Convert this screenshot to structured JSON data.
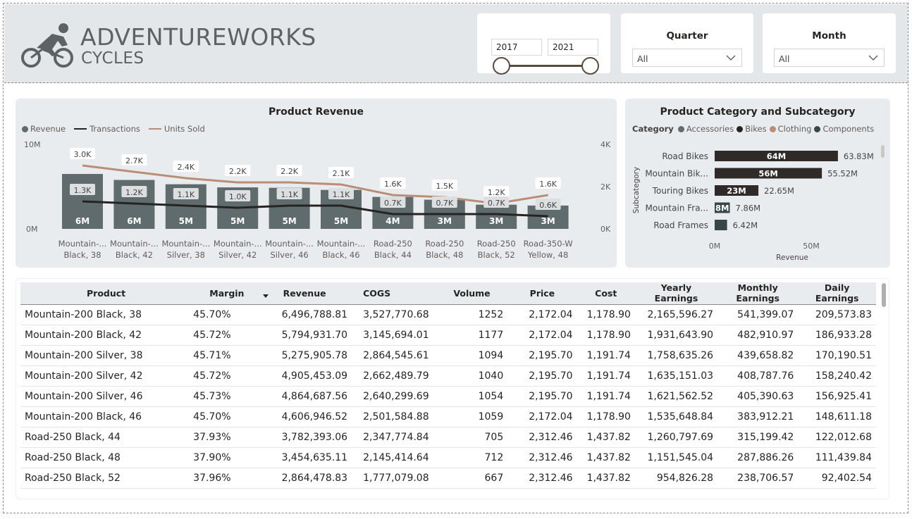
{
  "header": {
    "logo_title": "ADVENTUREWORKS",
    "logo_sub": "CYCLES",
    "year_slider": {
      "start": "2017",
      "end": "2021"
    },
    "quarter": {
      "title": "Quarter",
      "value": "All"
    },
    "month": {
      "title": "Month",
      "value": "All"
    }
  },
  "revenue_chart": {
    "title": "Product Revenue",
    "legend": {
      "revenue": "Revenue",
      "transactions": "Transactions",
      "units": "Units Sold"
    },
    "y_left": [
      "10M",
      "0M"
    ],
    "y_right": [
      "4K",
      "2K",
      "0K"
    ]
  },
  "category_chart": {
    "title": "Product Category and Subcategory",
    "legend_title": "Category",
    "legend": [
      "Accessories",
      "Bikes",
      "Clothing",
      "Components"
    ],
    "ylabel": "Subcategory",
    "xlabel": "Revenue",
    "x_ticks": [
      "0M",
      "50M"
    ]
  },
  "chart_data": [
    {
      "type": "bar",
      "title": "Product Revenue",
      "categories": [
        "Mountain-... Black, 38",
        "Mountain-... Black, 42",
        "Mountain-... Silver, 38",
        "Mountain-... Silver, 42",
        "Mountain-... Silver, 46",
        "Mountain-... Black, 46",
        "Road-250 Black, 44",
        "Road-250 Black, 48",
        "Road-250 Black, 52",
        "Road-350-W Yellow, 48"
      ],
      "series": [
        {
          "name": "Revenue",
          "type": "bar",
          "values": [
            6.5,
            5.79,
            5.28,
            4.91,
            4.86,
            4.61,
            3.78,
            3.45,
            2.86,
            2.76
          ],
          "labels": [
            "6M",
            "6M",
            "5M",
            "5M",
            "5M",
            "5M",
            "4M",
            "3M",
            "3M",
            "3M"
          ],
          "axis": "left"
        },
        {
          "name": "Transactions",
          "type": "line",
          "values": [
            1300,
            1200,
            1100,
            1000,
            1100,
            1100,
            700,
            700,
            700,
            600
          ],
          "labels": [
            "1.3K",
            "1.2K",
            "1.1K",
            "1.0K",
            "1.1K",
            "1.1K",
            "0.7K",
            "0.7K",
            "0.7K",
            "0.6K"
          ],
          "axis": "right"
        },
        {
          "name": "Units Sold",
          "type": "line",
          "values": [
            3000,
            2700,
            2400,
            2200,
            2200,
            2100,
            1600,
            1500,
            1200,
            1600
          ],
          "labels": [
            "3.0K",
            "2.7K",
            "2.4K",
            "2.2K",
            "2.2K",
            "2.1K",
            "1.6K",
            "1.5K",
            "1.2K",
            "1.6K"
          ],
          "axis": "right"
        }
      ],
      "ylim_left": [
        0,
        10
      ],
      "ylim_right": [
        0,
        4000
      ],
      "colors": {
        "bar": "#5f6b6d",
        "transactions": "#252423",
        "units": "#b98e78"
      },
      "legend_position": "top-left"
    },
    {
      "type": "bar",
      "orientation": "horizontal",
      "title": "Product Category and Subcategory",
      "categories": [
        "Road Bikes",
        "Mountain Bik...",
        "Touring Bikes",
        "Mountain Fra...",
        "Road Frames"
      ],
      "values": [
        63.83,
        55.52,
        22.65,
        7.86,
        6.42
      ],
      "inner_labels": [
        "64M",
        "56M",
        "23M",
        "8M",
        ""
      ],
      "outer_labels": [
        "63.83M",
        "55.52M",
        "22.65M",
        "7.86M",
        "6.42M"
      ],
      "bar_category": [
        "Bikes",
        "Bikes",
        "Bikes",
        "Components",
        "Components"
      ],
      "xlim": [
        0,
        80
      ],
      "xlabel": "Revenue",
      "ylabel": "Subcategory",
      "legend_colors": {
        "Accessories": "#5f6b6d",
        "Bikes": "#252423",
        "Clothing": "#b98e78",
        "Components": "#374649"
      }
    }
  ],
  "table": {
    "columns": [
      "Product",
      "Margin",
      "Revenue",
      "COGS",
      "Volume",
      "Price",
      "Cost",
      "Yearly Earnings",
      "Monthly Earnings",
      "Daily Earnings"
    ],
    "rows": [
      [
        "Mountain-200 Black, 38",
        "45.70%",
        "6,496,788.81",
        "3,527,770.68",
        "1252",
        "2,172.04",
        "1,178.90",
        "2,165,596.27",
        "541,399.07",
        "209,573.83"
      ],
      [
        "Mountain-200 Black, 42",
        "45.72%",
        "5,794,931.70",
        "3,145,694.01",
        "1177",
        "2,172.04",
        "1,178.90",
        "1,931,643.90",
        "482,910.97",
        "186,933.28"
      ],
      [
        "Mountain-200 Silver, 38",
        "45.71%",
        "5,275,905.78",
        "2,864,545.61",
        "1094",
        "2,195.70",
        "1,191.74",
        "1,758,635.26",
        "439,658.82",
        "170,190.51"
      ],
      [
        "Mountain-200 Silver, 42",
        "45.72%",
        "4,905,453.09",
        "2,662,489.79",
        "1040",
        "2,195.70",
        "1,191.74",
        "1,635,151.03",
        "408,787.76",
        "158,240.42"
      ],
      [
        "Mountain-200 Silver, 46",
        "45.73%",
        "4,864,687.56",
        "2,640,299.69",
        "1054",
        "2,195.70",
        "1,191.74",
        "1,621,562.52",
        "405,390.63",
        "156,925.41"
      ],
      [
        "Mountain-200 Black, 46",
        "45.70%",
        "4,606,946.52",
        "2,501,584.88",
        "1059",
        "2,172.04",
        "1,178.90",
        "1,535,648.84",
        "383,912.21",
        "148,611.18"
      ],
      [
        "Road-250 Black, 44",
        "37.93%",
        "3,782,393.06",
        "2,347,774.84",
        "705",
        "2,312.46",
        "1,437.82",
        "1,260,797.69",
        "315,199.42",
        "122,012.68"
      ],
      [
        "Road-250 Black, 48",
        "37.90%",
        "3,454,635.11",
        "2,145,414.64",
        "712",
        "2,312.46",
        "1,437.82",
        "1,151,545.04",
        "287,886.26",
        "111,439.84"
      ],
      [
        "Road-250 Black, 52",
        "37.96%",
        "2,864,478.83",
        "1,777,079.08",
        "667",
        "2,312.46",
        "1,437.82",
        "954,826.28",
        "238,706.57",
        "92,402.54"
      ]
    ]
  }
}
